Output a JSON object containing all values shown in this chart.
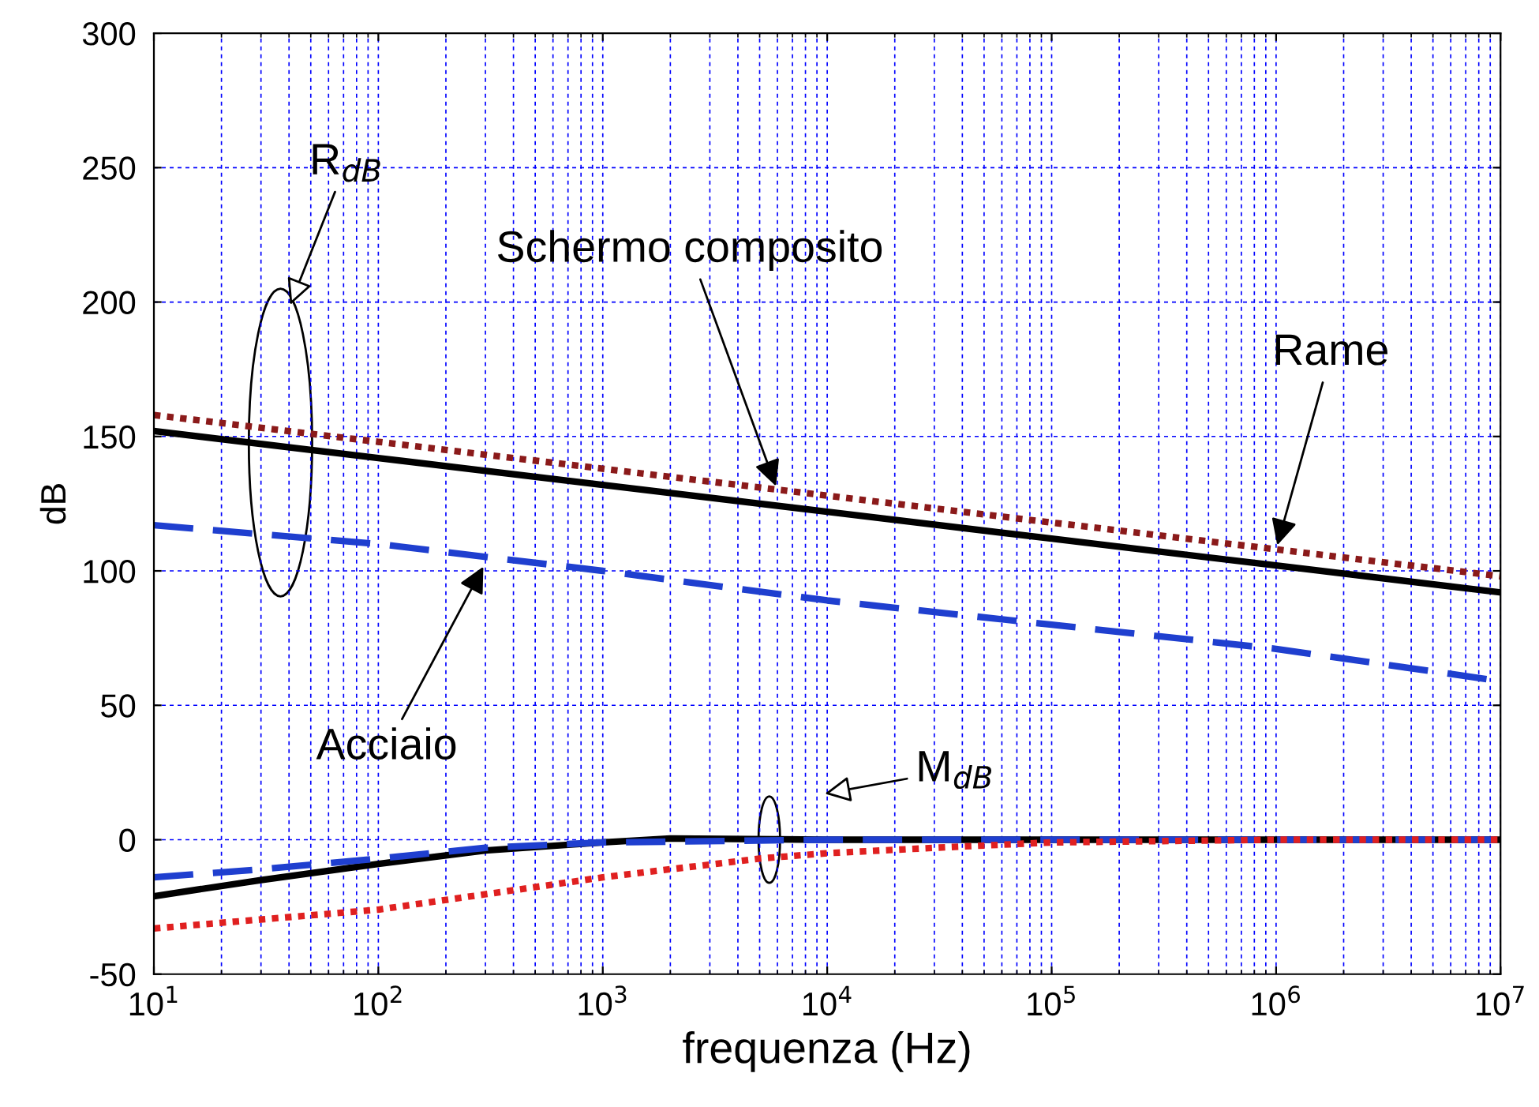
{
  "chart_data": {
    "type": "line",
    "xlabel": "frequenza (Hz)",
    "ylabel": "dB",
    "log": "x",
    "grid": true,
    "xlim": [
      10,
      10000000
    ],
    "ylim": [
      -50,
      300
    ],
    "xticks": [
      {
        "value": 10,
        "label": "10$^{1}$"
      },
      {
        "value": 100,
        "label": "10$^{2}$"
      },
      {
        "value": 1000,
        "label": "10$^{3}$"
      },
      {
        "value": 10000,
        "label": "10$^{4}$"
      },
      {
        "value": 100000,
        "label": "10$^{5}$"
      },
      {
        "value": 1000000,
        "label": "10$^{6}$"
      },
      {
        "value": 10000000,
        "label": "10$^{7}$"
      }
    ],
    "yticks": [
      -50,
      0,
      50,
      100,
      150,
      200,
      250,
      300
    ],
    "marker": "none",
    "series": [
      {
        "color": "#000000",
        "line_style": "solid",
        "x": [
          10,
          100,
          1000,
          10000,
          100000,
          1000000,
          10000000
        ],
        "values": [
          152,
          142,
          132,
          122,
          112,
          102,
          92
        ]
      },
      {
        "color": "#8b1a1a",
        "line_style": "dotted",
        "x": [
          10,
          100,
          1000,
          10000,
          100000,
          1000000,
          10000000
        ],
        "values": [
          158,
          148,
          138,
          128,
          118,
          108,
          98
        ]
      },
      {
        "color": "#1f3fcf",
        "line_style": "dashed",
        "x": [
          10,
          100,
          1000,
          10000,
          100000,
          1000000,
          10000000
        ],
        "values": [
          117,
          110,
          100,
          89,
          80,
          71,
          59
        ]
      },
      {
        "color": "#000000",
        "line_style": "solid",
        "x": [
          10,
          30,
          100,
          300,
          1000,
          2000,
          10000,
          10000000
        ],
        "values": [
          -21,
          -15,
          -9,
          -4,
          -1,
          0.5,
          0,
          0
        ]
      },
      {
        "color": "#1f3fcf",
        "line_style": "dashed",
        "x": [
          10,
          30,
          100,
          300,
          1000,
          10000,
          10000000
        ],
        "values": [
          -14,
          -11,
          -7,
          -3,
          -1,
          0,
          0
        ]
      },
      {
        "color": "#e02020",
        "line_style": "dotted",
        "x": [
          10,
          100,
          1000,
          5000,
          10000,
          30000,
          100000,
          1000000,
          10000000
        ],
        "values": [
          -33,
          -26,
          -14,
          -7,
          -5,
          -3,
          -1,
          0,
          0
        ]
      }
    ],
    "annotations": [
      "R$_{dB}$",
      {
        "text": "Schermo composito",
        "x": 6000,
        "y": 130
      },
      {
        "text": "Rame",
        "x": 1000000,
        "y": 108
      },
      {
        "text": "Acciaio",
        "x": 300,
        "y": 103
      },
      "M$_{dB}$"
    ]
  }
}
